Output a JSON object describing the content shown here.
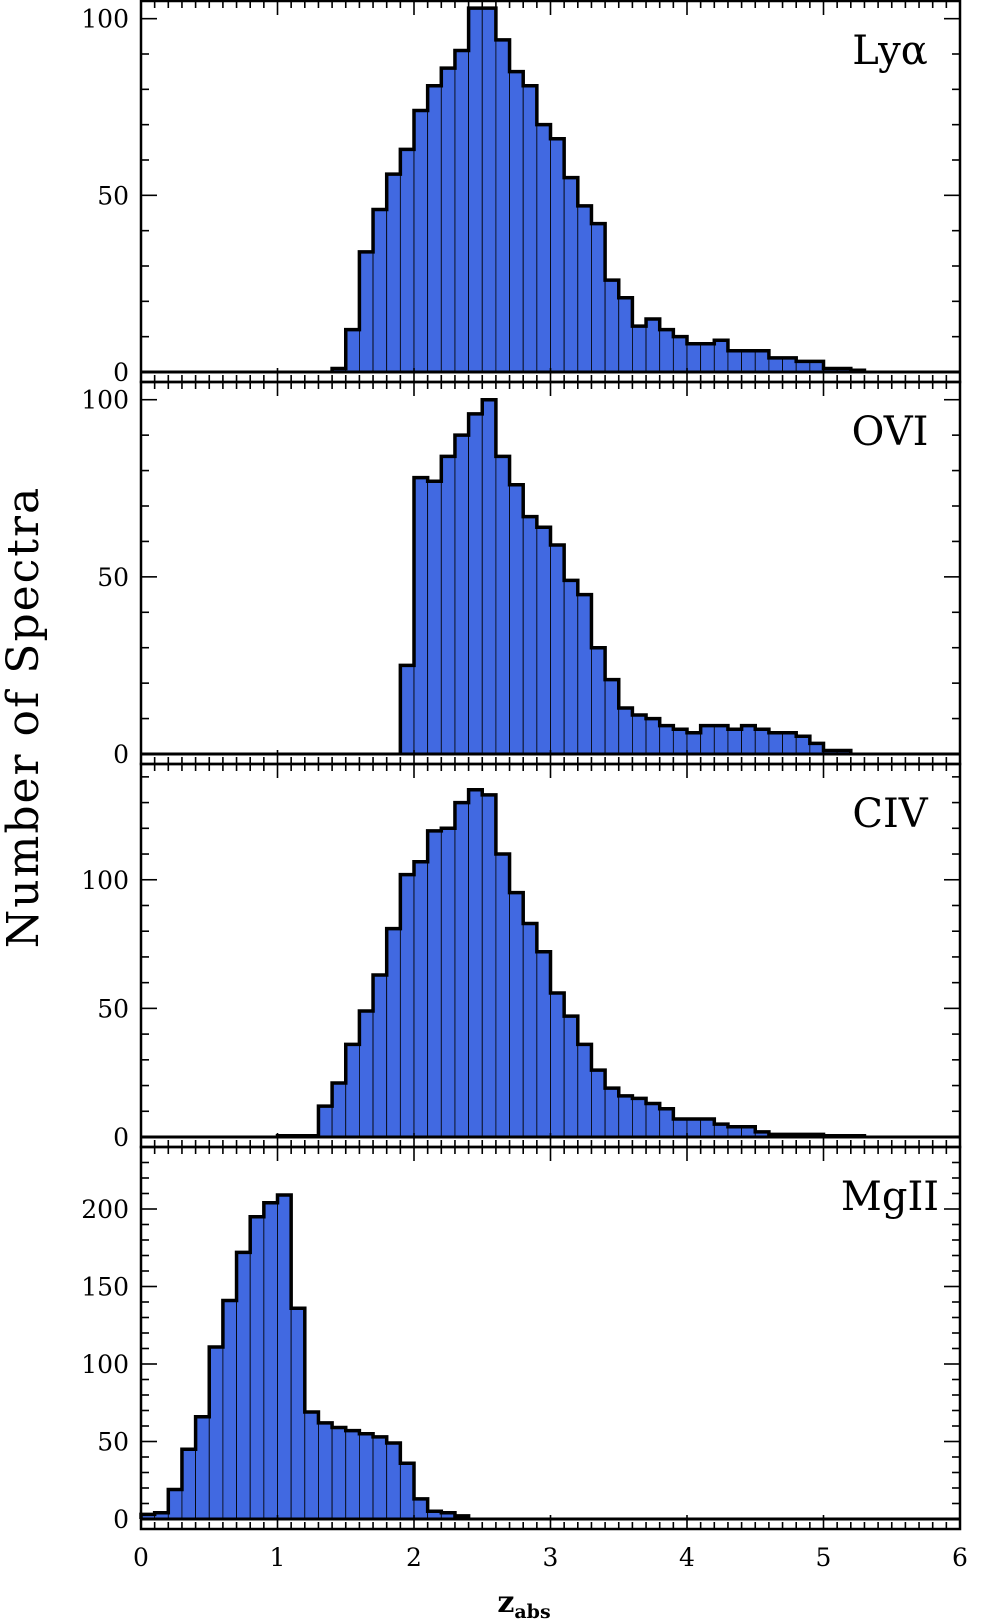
{
  "chart_data": {
    "type": "bar",
    "ylabel": "Number of Spectra",
    "xlabel": {
      "main": "z",
      "sub": "abs"
    },
    "xlim": [
      0,
      6
    ],
    "x_ticks": [
      0,
      1,
      2,
      3,
      4,
      5,
      6
    ],
    "x_tick_labels": [
      "0",
      "1",
      "2",
      "3",
      "4",
      "5",
      "6"
    ],
    "bin_width": 0.1,
    "grid": false,
    "bar_color": "#4169E1",
    "edge_color": "#000000",
    "panels": [
      {
        "label": "Lyα",
        "ylim": [
          0,
          105
        ],
        "y_ticks": [
          0,
          50,
          100
        ],
        "y_tick_labels": [
          "0",
          "50",
          "100"
        ],
        "bins": [
          [
            1.4,
            1
          ],
          [
            1.5,
            12
          ],
          [
            1.6,
            34
          ],
          [
            1.7,
            46
          ],
          [
            1.8,
            56
          ],
          [
            1.9,
            63
          ],
          [
            2.0,
            74
          ],
          [
            2.1,
            81
          ],
          [
            2.2,
            86
          ],
          [
            2.3,
            91
          ],
          [
            2.4,
            103
          ],
          [
            2.5,
            103
          ],
          [
            2.6,
            94
          ],
          [
            2.7,
            85
          ],
          [
            2.8,
            81
          ],
          [
            2.9,
            70
          ],
          [
            3.0,
            66
          ],
          [
            3.1,
            55
          ],
          [
            3.2,
            47
          ],
          [
            3.3,
            42
          ],
          [
            3.4,
            26
          ],
          [
            3.5,
            21
          ],
          [
            3.6,
            13
          ],
          [
            3.7,
            15
          ],
          [
            3.8,
            12
          ],
          [
            3.9,
            10
          ],
          [
            4.0,
            8
          ],
          [
            4.1,
            8
          ],
          [
            4.2,
            9
          ],
          [
            4.3,
            6
          ],
          [
            4.4,
            6
          ],
          [
            4.5,
            6
          ],
          [
            4.6,
            4
          ],
          [
            4.7,
            4
          ],
          [
            4.8,
            3
          ],
          [
            4.9,
            3
          ],
          [
            5.0,
            1
          ],
          [
            5.1,
            1
          ],
          [
            5.2,
            0.5
          ]
        ]
      },
      {
        "label": "OVI",
        "ylim": [
          0,
          105
        ],
        "y_ticks": [
          0,
          50,
          100
        ],
        "y_tick_labels": [
          "0",
          "50",
          "100"
        ],
        "bins": [
          [
            1.9,
            25
          ],
          [
            2.0,
            78
          ],
          [
            2.1,
            77
          ],
          [
            2.2,
            84
          ],
          [
            2.3,
            90
          ],
          [
            2.4,
            96
          ],
          [
            2.5,
            100
          ],
          [
            2.6,
            84
          ],
          [
            2.7,
            76
          ],
          [
            2.8,
            67
          ],
          [
            2.9,
            64
          ],
          [
            3.0,
            59
          ],
          [
            3.1,
            49
          ],
          [
            3.2,
            45
          ],
          [
            3.3,
            30
          ],
          [
            3.4,
            21
          ],
          [
            3.5,
            13
          ],
          [
            3.6,
            11
          ],
          [
            3.7,
            10
          ],
          [
            3.8,
            8
          ],
          [
            3.9,
            7
          ],
          [
            4.0,
            6
          ],
          [
            4.1,
            8
          ],
          [
            4.2,
            8
          ],
          [
            4.3,
            7
          ],
          [
            4.4,
            8
          ],
          [
            4.5,
            7
          ],
          [
            4.6,
            6
          ],
          [
            4.7,
            6
          ],
          [
            4.8,
            5
          ],
          [
            4.9,
            3
          ],
          [
            5.0,
            1
          ],
          [
            5.1,
            1
          ]
        ]
      },
      {
        "label": "CIV",
        "ylim": [
          0,
          145
        ],
        "y_ticks": [
          0,
          50,
          100
        ],
        "y_tick_labels": [
          "0",
          "50",
          "100"
        ],
        "bins": [
          [
            1.0,
            0.5
          ],
          [
            1.1,
            0.5
          ],
          [
            1.2,
            0.5
          ],
          [
            1.3,
            12
          ],
          [
            1.4,
            21
          ],
          [
            1.5,
            36
          ],
          [
            1.6,
            49
          ],
          [
            1.7,
            63
          ],
          [
            1.8,
            81
          ],
          [
            1.9,
            102
          ],
          [
            2.0,
            107
          ],
          [
            2.1,
            119
          ],
          [
            2.2,
            120
          ],
          [
            2.3,
            130
          ],
          [
            2.4,
            135
          ],
          [
            2.5,
            133
          ],
          [
            2.6,
            110
          ],
          [
            2.7,
            95
          ],
          [
            2.8,
            83
          ],
          [
            2.9,
            72
          ],
          [
            3.0,
            56
          ],
          [
            3.1,
            47
          ],
          [
            3.2,
            36
          ],
          [
            3.3,
            26
          ],
          [
            3.4,
            19
          ],
          [
            3.5,
            16
          ],
          [
            3.6,
            15
          ],
          [
            3.7,
            13
          ],
          [
            3.8,
            11
          ],
          [
            3.9,
            7
          ],
          [
            4.0,
            7
          ],
          [
            4.1,
            7
          ],
          [
            4.2,
            5
          ],
          [
            4.3,
            4
          ],
          [
            4.4,
            4
          ],
          [
            4.5,
            2
          ],
          [
            4.6,
            1
          ],
          [
            4.7,
            1
          ],
          [
            4.8,
            1
          ],
          [
            4.9,
            1
          ],
          [
            5.0,
            0.5
          ],
          [
            5.1,
            0.5
          ],
          [
            5.2,
            0.5
          ]
        ]
      },
      {
        "label": "MgII",
        "ylim": [
          0,
          240
        ],
        "y_ticks": [
          0,
          50,
          100,
          150,
          200
        ],
        "y_tick_labels": [
          "0",
          "50",
          "100",
          "150",
          "200"
        ],
        "bins": [
          [
            0.0,
            3
          ],
          [
            0.1,
            4
          ],
          [
            0.2,
            19
          ],
          [
            0.3,
            45
          ],
          [
            0.4,
            66
          ],
          [
            0.5,
            111
          ],
          [
            0.6,
            141
          ],
          [
            0.7,
            172
          ],
          [
            0.8,
            195
          ],
          [
            0.9,
            204
          ],
          [
            1.0,
            209
          ],
          [
            1.1,
            136
          ],
          [
            1.2,
            69
          ],
          [
            1.3,
            62
          ],
          [
            1.4,
            59
          ],
          [
            1.5,
            57
          ],
          [
            1.6,
            55
          ],
          [
            1.7,
            53
          ],
          [
            1.8,
            49
          ],
          [
            1.9,
            36
          ],
          [
            2.0,
            13
          ],
          [
            2.1,
            5
          ],
          [
            2.2,
            4
          ],
          [
            2.3,
            2
          ]
        ]
      }
    ]
  }
}
